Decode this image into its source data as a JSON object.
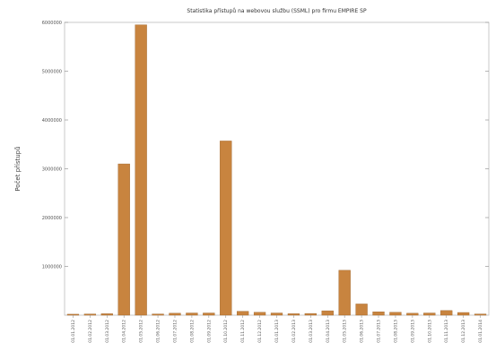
{
  "chart_data": {
    "type": "bar",
    "title": "Statistika přístupů na webovou službu (SSML) pro firmu EMPIRE SP",
    "xlabel": "",
    "ylabel": "Počet přístupů",
    "ylim": [
      0,
      6000000
    ],
    "yticks": [
      1000000,
      2000000,
      3000000,
      4000000,
      5000000,
      6000000
    ],
    "grid": false,
    "legend": "none",
    "bar_color": "#c8843f",
    "categories": [
      "01.01.2012",
      "01.02.2012",
      "01.03.2012",
      "01.04.2012",
      "01.05.2012",
      "01.06.2012",
      "01.07.2012",
      "01.08.2012",
      "01.09.2012",
      "01.10.2012",
      "01.11.2012",
      "01.12.2012",
      "01.01.2013",
      "01.02.2013",
      "01.03.2013",
      "01.04.2013",
      "01.05.2013",
      "01.06.2013",
      "01.07.2013",
      "01.08.2013",
      "01.09.2013",
      "01.10.2013",
      "01.11.2013",
      "01.12.2013",
      "01.01.2014"
    ],
    "values": [
      20000,
      25000,
      30000,
      3100000,
      5950000,
      25000,
      40000,
      45000,
      45000,
      3570000,
      80000,
      60000,
      45000,
      30000,
      35000,
      90000,
      920000,
      230000,
      70000,
      60000,
      40000,
      45000,
      95000,
      55000,
      25000
    ]
  }
}
